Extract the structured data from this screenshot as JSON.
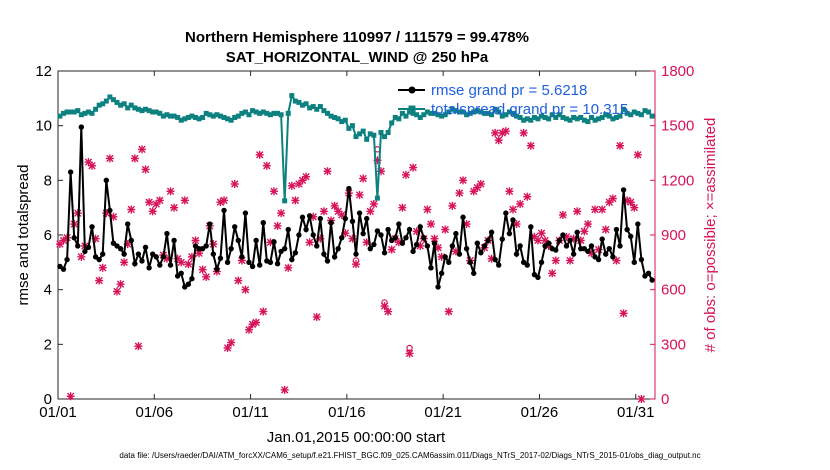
{
  "chart_data": {
    "type": "line",
    "title": "Northern Hemisphere 110997 / 111579 = 99.478%",
    "subtitle": "SAT_HORIZONTAL_WIND @ 250 hPa",
    "xlabel": "Jan.01,2015 00:00:00 start",
    "ylabel": "rmse and totalspread",
    "y2label": "# of obs: o=possible; ×=assimilated",
    "footer": "data file: /Users/raeder/DAI/ATM_forcXX/CAM6_setup/f.e21.FHIST_BGC.f09_025.CAM6assim.011/Diags_NTrS_2017-02/Diags_NTrS_2015-01/obs_diag_output.nc",
    "x_ticks": [
      "01/01",
      "01/06",
      "01/11",
      "01/16",
      "01/21",
      "01/26",
      "01/31"
    ],
    "x_tick_days": [
      1,
      6,
      11,
      16,
      21,
      26,
      31
    ],
    "xlim": [
      1,
      32
    ],
    "ylim": [
      0,
      12
    ],
    "y_ticks": [
      "0",
      "2",
      "4",
      "6",
      "8",
      "10",
      "12"
    ],
    "y2lim": [
      0,
      1800
    ],
    "y2_ticks": [
      "0",
      "300",
      "600",
      "900",
      "1200",
      "1500",
      "1800"
    ],
    "legend": {
      "rmse": "rmse grand pr = 5.6218",
      "spread": "totalspread grand pr = 10.315",
      "position": "top-right"
    },
    "colors": {
      "rmse": "#000000",
      "spread": "#0d8080",
      "obs": "#d6135a",
      "legend_text": "#1e5fe0"
    },
    "series": [
      {
        "name": "rmse",
        "values": [
          4.85,
          4.75,
          5.1,
          8.3,
          5.9,
          5.6,
          9.95,
          5.4,
          5.55,
          6.3,
          5.2,
          5.1,
          5.3,
          8.0,
          6.9,
          5.7,
          5.6,
          5.5,
          5.3,
          6.4,
          5.8,
          4.95,
          5.3,
          5.05,
          5.55,
          4.8,
          5.3,
          5.2,
          4.9,
          5.2,
          6.05,
          4.9,
          5.8,
          4.5,
          4.6,
          4.1,
          4.2,
          4.4,
          5.6,
          5.5,
          5.5,
          5.6,
          6.4,
          5.3,
          4.75,
          5.15,
          6.9,
          5.0,
          5.5,
          6.3,
          5.8,
          5.2,
          6.8,
          5.0,
          4.85,
          5.8,
          4.9,
          6.45,
          5.05,
          5.0,
          5.75,
          4.95,
          5.4,
          5.5,
          6.2,
          5.1,
          5.35,
          6.0,
          6.65,
          6.2,
          6.7,
          6.0,
          5.6,
          6.6,
          5.3,
          5.05,
          6.45,
          5.2,
          5.5,
          5.9,
          6.6,
          7.7,
          6.5,
          5.3,
          6.8,
          6.05,
          6.6,
          5.5,
          5.65,
          6.15,
          6.0,
          5.35,
          6.2,
          5.8,
          5.9,
          6.4,
          5.7,
          5.9,
          6.2,
          5.4,
          5.65,
          6.3,
          5.9,
          5.6,
          4.8,
          5.7,
          4.1,
          4.6,
          5.2,
          5.0,
          5.6,
          6.05,
          5.3,
          6.65,
          5.5,
          5.0,
          4.6,
          5.7,
          5.35,
          5.6,
          5.8,
          6.1,
          5.1,
          4.9,
          5.85,
          6.8,
          6.05,
          6.55,
          5.3,
          5.6,
          5.0,
          4.9,
          6.3,
          4.55,
          4.45,
          5.0,
          5.6,
          5.7,
          5.5,
          5.45,
          5.8,
          6.0,
          5.6,
          5.8,
          5.3,
          6.1,
          5.5,
          5.5,
          5.4,
          5.6,
          5.2,
          5.1,
          5.85,
          5.3,
          5.5,
          5.2,
          6.2,
          5.6,
          7.65,
          6.2,
          5.95,
          5.0,
          6.4,
          5.1,
          4.5,
          4.6,
          4.35
        ]
      },
      {
        "name": "totalspread",
        "values": [
          10.35,
          10.45,
          10.5,
          10.5,
          10.5,
          10.55,
          10.4,
          10.45,
          10.5,
          10.45,
          10.6,
          10.75,
          10.8,
          10.9,
          11.05,
          10.95,
          10.85,
          10.75,
          10.8,
          10.65,
          10.75,
          10.65,
          10.6,
          10.55,
          10.6,
          10.55,
          10.5,
          10.5,
          10.45,
          10.35,
          10.4,
          10.35,
          10.35,
          10.3,
          10.2,
          10.25,
          10.3,
          10.35,
          10.3,
          10.25,
          10.3,
          10.45,
          10.4,
          10.35,
          10.4,
          10.35,
          10.3,
          10.25,
          10.2,
          10.3,
          10.35,
          10.45,
          10.5,
          10.4,
          10.55,
          10.5,
          10.45,
          10.5,
          10.45,
          10.4,
          10.45,
          10.45,
          10.4,
          7.25,
          10.45,
          11.1,
          10.9,
          10.85,
          10.75,
          10.8,
          10.65,
          10.7,
          10.6,
          10.7,
          10.55,
          10.45,
          10.35,
          10.3,
          10.25,
          10.15,
          10.2,
          9.9,
          10.0,
          9.6,
          9.7,
          9.8,
          9.5,
          9.7,
          9.65,
          7.35,
          9.75,
          9.6,
          9.75,
          10.1,
          10.3,
          10.25,
          10.45,
          10.35,
          10.5,
          10.45,
          10.4,
          10.3,
          10.4,
          10.5,
          10.45,
          10.45,
          10.4,
          10.35,
          10.4,
          10.5,
          10.6,
          10.55,
          10.5,
          10.5,
          10.4,
          10.45,
          10.5,
          10.55,
          10.5,
          10.45,
          10.45,
          10.4,
          10.6,
          10.5,
          10.35,
          10.4,
          10.5,
          10.45,
          10.35,
          10.3,
          10.2,
          10.25,
          10.2,
          10.3,
          10.25,
          10.35,
          10.3,
          10.25,
          10.4,
          10.3,
          10.4,
          10.3,
          10.25,
          10.2,
          10.3,
          10.25,
          10.3,
          10.2,
          10.15,
          10.3,
          10.2,
          10.25,
          10.3,
          10.4,
          10.35,
          10.25,
          10.3,
          10.35,
          10.6,
          10.45,
          10.4,
          10.5,
          10.45,
          10.4,
          10.55,
          10.5,
          10.35
        ]
      },
      {
        "name": "obs assimilated",
        "values": [
          850,
          870,
          885,
          15,
          960,
          1020,
          780,
          840,
          1300,
          1280,
          880,
          650,
          720,
          1020,
          1320,
          1000,
          590,
          630,
          750,
          850,
          1040,
          1320,
          290,
          1370,
          1260,
          1080,
          1030,
          1070,
          1090,
          790,
          770,
          1140,
          1050,
          770,
          750,
          1090,
          740,
          780,
          870,
          800,
          710,
          670,
          950,
          850,
          700,
          1080,
          1090,
          280,
          310,
          1180,
          650,
          760,
          600,
          380,
          410,
          420,
          1340,
          480,
          1280,
          860,
          1140,
          950,
          1020,
          50,
          720,
          1170,
          1090,
          1180,
          1200,
          1220,
          860,
          1000,
          450,
          880,
          1030,
          1250,
          980,
          1060,
          1030,
          1010,
          910,
          1130,
          880,
          740,
          1120,
          1210,
          860,
          1030,
          1070,
          1310,
          1250,
          510,
          480,
          820,
          880,
          860,
          1050,
          1230,
          250,
          1270,
          920,
          840,
          880,
          1040,
          960,
          880,
          830,
          780,
          930,
          480,
          1060,
          810,
          1130,
          1200,
          960,
          760,
          1140,
          1160,
          1180,
          830,
          870,
          770,
          1460,
          1420,
          1460,
          1470,
          1140,
          1040,
          960,
          1070,
          1460,
          1110,
          1390,
          890,
          870,
          910,
          870,
          840,
          690,
          760,
          870,
          1010,
          890,
          760,
          880,
          1030,
          870,
          920,
          960,
          800,
          1040,
          820,
          1040,
          930,
          1080,
          1100,
          760,
          1390,
          470,
          1090,
          1080,
          1050,
          1340,
          0
        ]
      },
      {
        "name": "obs possible",
        "values": [
          850,
          870,
          885,
          15,
          960,
          1020,
          790,
          850,
          1300,
          1280,
          880,
          650,
          720,
          1020,
          1320,
          1000,
          590,
          630,
          750,
          850,
          1040,
          1320,
          290,
          1370,
          1260,
          1080,
          1030,
          1070,
          1090,
          790,
          770,
          1140,
          1050,
          770,
          750,
          1090,
          740,
          780,
          870,
          800,
          710,
          670,
          950,
          850,
          700,
          1080,
          1090,
          280,
          310,
          1180,
          650,
          760,
          600,
          380,
          410,
          420,
          1340,
          480,
          1280,
          860,
          1140,
          950,
          1020,
          50,
          720,
          1170,
          1090,
          1180,
          1200,
          1220,
          860,
          1000,
          450,
          880,
          1030,
          1250,
          990,
          1070,
          1030,
          1010,
          910,
          1130,
          880,
          760,
          1120,
          1210,
          860,
          1030,
          1070,
          1370,
          1250,
          530,
          480,
          820,
          880,
          860,
          1050,
          1230,
          280,
          1270,
          920,
          840,
          880,
          1040,
          960,
          880,
          830,
          780,
          930,
          480,
          1060,
          810,
          1130,
          1200,
          960,
          760,
          1140,
          1160,
          1180,
          830,
          870,
          770,
          1460,
          1420,
          1460,
          1470,
          1140,
          1040,
          960,
          1070,
          1460,
          1110,
          1390,
          890,
          870,
          910,
          870,
          840,
          690,
          760,
          870,
          1010,
          890,
          760,
          880,
          1030,
          870,
          920,
          960,
          800,
          1040,
          820,
          1040,
          930,
          1080,
          1100,
          760,
          1390,
          470,
          1090,
          1080,
          1050,
          1340,
          0
        ]
      }
    ]
  }
}
